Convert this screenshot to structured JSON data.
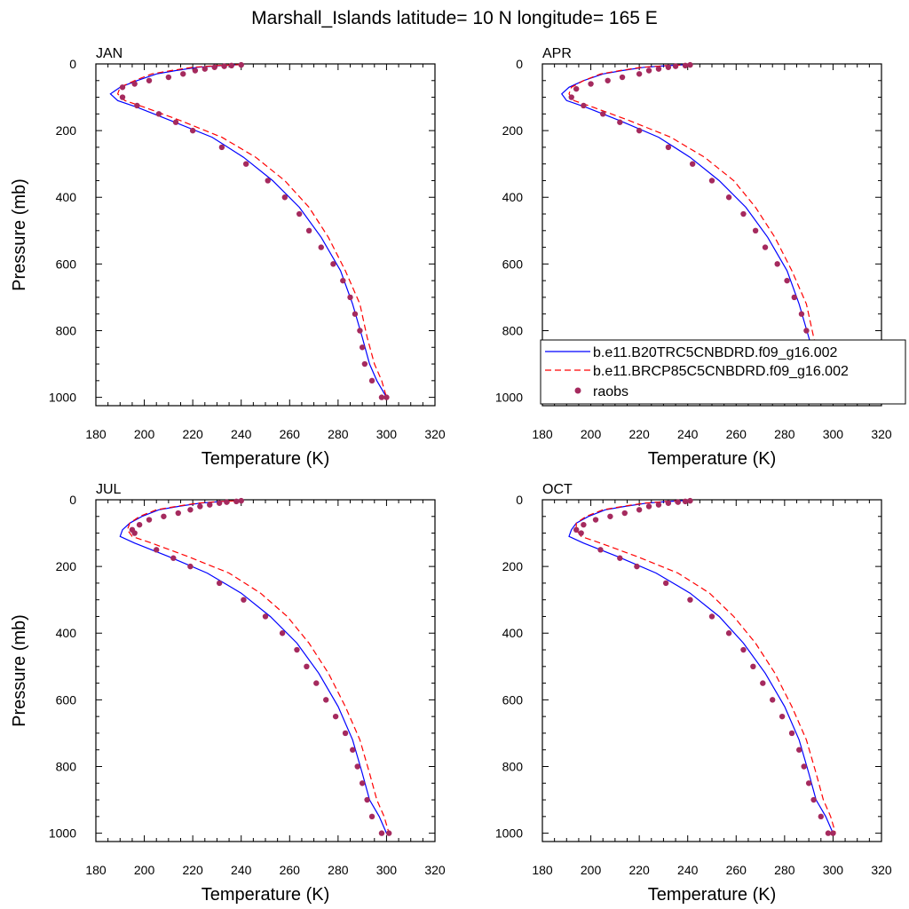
{
  "title": "Marshall_Islands  latitude= 10 N longitude= 165 E",
  "colors": {
    "model1": "#0000ff",
    "model2": "#ff0000",
    "raobs": "#a52a5e",
    "axis": "#000000",
    "background": "#ffffff"
  },
  "legend": {
    "items": [
      {
        "label": "b.e11.B20TRC5CNBDRD.f09_g16.002",
        "style": "solid-line"
      },
      {
        "label": "b.e11.BRCP85C5CNBDRD.f09_g16.002",
        "style": "dashed-line"
      },
      {
        "label": "raobs",
        "style": "marker"
      }
    ]
  },
  "chart_data": [
    {
      "type": "line",
      "panel": "JAN",
      "xlabel": "Temperature (K)",
      "ylabel": "Pressure (mb)",
      "xlim": [
        180,
        320
      ],
      "ylim": [
        1025,
        0
      ],
      "xticks": [
        180,
        200,
        220,
        240,
        260,
        280,
        300,
        320
      ],
      "yticks": [
        0,
        200,
        400,
        600,
        800,
        1000
      ],
      "series": [
        {
          "name": "b.e11.B20TRC5CNBDRD.f09_g16.002",
          "style": "solid",
          "x": [
            240,
            232,
            222,
            213,
            205,
            197,
            190,
            186,
            189,
            197,
            211,
            228,
            241,
            253,
            264,
            273,
            281,
            286,
            290,
            293,
            296,
            300
          ],
          "y": [
            2,
            5,
            10,
            20,
            30,
            50,
            70,
            90,
            110,
            130,
            170,
            220,
            280,
            350,
            430,
            520,
            620,
            720,
            820,
            900,
            950,
            1000
          ]
        },
        {
          "name": "b.e11.BRCP85C5CNBDRD.f09_g16.002",
          "style": "dashed",
          "x": [
            240,
            230,
            220,
            211,
            203,
            196,
            190,
            189,
            192,
            200,
            215,
            232,
            246,
            258,
            268,
            276,
            283,
            289,
            292,
            295,
            298,
            300
          ],
          "y": [
            2,
            5,
            10,
            20,
            30,
            50,
            70,
            90,
            110,
            130,
            170,
            220,
            280,
            350,
            430,
            520,
            620,
            720,
            820,
            900,
            950,
            1000
          ]
        },
        {
          "name": "raobs",
          "style": "marker",
          "x": [
            240,
            236,
            233,
            229,
            225,
            221,
            216,
            210,
            202,
            196,
            191,
            191,
            197,
            206,
            213,
            220,
            232,
            242,
            251,
            258,
            264,
            268,
            273,
            278,
            282,
            285,
            287,
            289,
            290,
            291,
            294,
            298,
            300
          ],
          "y": [
            3,
            5,
            7,
            10,
            15,
            20,
            30,
            40,
            50,
            60,
            70,
            100,
            125,
            150,
            175,
            200,
            250,
            300,
            350,
            400,
            450,
            500,
            550,
            600,
            650,
            700,
            750,
            800,
            850,
            900,
            950,
            1000,
            1000
          ]
        }
      ]
    },
    {
      "type": "line",
      "panel": "APR",
      "xlabel": "Temperature (K)",
      "ylabel": "",
      "xlim": [
        180,
        320
      ],
      "ylim": [
        1025,
        0
      ],
      "xticks": [
        180,
        200,
        220,
        240,
        260,
        280,
        300,
        320
      ],
      "yticks": [
        0,
        200,
        400,
        600,
        800,
        1000
      ],
      "series": [
        {
          "name": "b.e11.B20TRC5CNBDRD.f09_g16.002",
          "style": "solid",
          "x": [
            240,
            232,
            222,
            213,
            205,
            197,
            191,
            188,
            190,
            198,
            212,
            228,
            241,
            253,
            264,
            273,
            281,
            286,
            290,
            293,
            296,
            300
          ],
          "y": [
            2,
            5,
            10,
            20,
            30,
            50,
            70,
            90,
            110,
            130,
            170,
            220,
            280,
            350,
            430,
            520,
            620,
            720,
            820,
            900,
            950,
            1000
          ]
        },
        {
          "name": "b.e11.BRCP85C5CNBDRD.f09_g16.002",
          "style": "dashed",
          "x": [
            241,
            231,
            221,
            212,
            204,
            197,
            192,
            191,
            193,
            201,
            216,
            233,
            247,
            259,
            268,
            276,
            283,
            289,
            292,
            295,
            298,
            300
          ],
          "y": [
            2,
            5,
            10,
            20,
            30,
            50,
            70,
            90,
            110,
            130,
            170,
            220,
            280,
            350,
            430,
            520,
            620,
            720,
            820,
            900,
            950,
            1000
          ]
        },
        {
          "name": "raobs",
          "style": "marker",
          "x": [
            241,
            239,
            235,
            232,
            228,
            224,
            220,
            213,
            207,
            200,
            194,
            192,
            197,
            205,
            212,
            220,
            232,
            242,
            250,
            257,
            263,
            268,
            272,
            277,
            281,
            284,
            287,
            289,
            290,
            292,
            295,
            298,
            300
          ],
          "y": [
            3,
            5,
            7,
            10,
            15,
            20,
            30,
            40,
            50,
            60,
            75,
            100,
            125,
            150,
            175,
            200,
            250,
            300,
            350,
            400,
            450,
            500,
            550,
            600,
            650,
            700,
            750,
            800,
            850,
            900,
            950,
            1000,
            1000
          ]
        }
      ]
    },
    {
      "type": "line",
      "panel": "JUL",
      "xlabel": "Temperature (K)",
      "ylabel": "Pressure (mb)",
      "xlim": [
        180,
        320
      ],
      "ylim": [
        1025,
        0
      ],
      "xticks": [
        180,
        200,
        220,
        240,
        260,
        280,
        300,
        320
      ],
      "yticks": [
        0,
        200,
        400,
        600,
        800,
        1000
      ],
      "series": [
        {
          "name": "b.e11.B20TRC5CNBDRD.f09_g16.002",
          "style": "solid",
          "x": [
            240,
            232,
            223,
            214,
            206,
            199,
            194,
            191,
            190,
            196,
            210,
            226,
            240,
            252,
            263,
            272,
            280,
            286,
            290,
            293,
            297,
            300
          ],
          "y": [
            2,
            5,
            10,
            20,
            30,
            50,
            70,
            90,
            110,
            130,
            170,
            220,
            280,
            350,
            430,
            520,
            620,
            720,
            820,
            900,
            950,
            1000
          ]
        },
        {
          "name": "b.e11.BRCP85C5CNBDRD.f09_g16.002",
          "style": "dashed",
          "x": [
            241,
            231,
            222,
            213,
            205,
            198,
            194,
            193,
            195,
            203,
            218,
            235,
            248,
            259,
            268,
            276,
            283,
            289,
            293,
            296,
            299,
            301
          ],
          "y": [
            2,
            5,
            10,
            20,
            30,
            50,
            70,
            90,
            110,
            130,
            170,
            220,
            280,
            350,
            430,
            520,
            620,
            720,
            820,
            900,
            950,
            1000
          ]
        },
        {
          "name": "raobs",
          "style": "marker",
          "x": [
            240,
            238,
            234,
            231,
            227,
            223,
            219,
            214,
            208,
            202,
            198,
            195,
            196,
            205,
            212,
            219,
            231,
            241,
            250,
            257,
            263,
            267,
            271,
            275,
            279,
            283,
            286,
            288,
            290,
            292,
            294,
            298,
            301
          ],
          "y": [
            3,
            5,
            7,
            10,
            15,
            20,
            30,
            40,
            50,
            60,
            75,
            90,
            100,
            150,
            175,
            200,
            250,
            300,
            350,
            400,
            450,
            500,
            550,
            600,
            650,
            700,
            750,
            800,
            850,
            900,
            950,
            1000,
            1000
          ]
        }
      ]
    },
    {
      "type": "line",
      "panel": "OCT",
      "xlabel": "Temperature (K)",
      "ylabel": "",
      "xlim": [
        180,
        320
      ],
      "ylim": [
        1025,
        0
      ],
      "xticks": [
        180,
        200,
        220,
        240,
        260,
        280,
        300,
        320
      ],
      "yticks": [
        0,
        200,
        400,
        600,
        800,
        1000
      ],
      "series": [
        {
          "name": "b.e11.B20TRC5CNBDRD.f09_g16.002",
          "style": "solid",
          "x": [
            240,
            232,
            223,
            214,
            206,
            199,
            194,
            192,
            191,
            197,
            211,
            227,
            241,
            253,
            263,
            272,
            280,
            286,
            290,
            293,
            297,
            300
          ],
          "y": [
            2,
            5,
            10,
            20,
            30,
            50,
            70,
            90,
            110,
            130,
            170,
            220,
            280,
            350,
            430,
            520,
            620,
            720,
            820,
            900,
            950,
            1000
          ]
        },
        {
          "name": "b.e11.BRCP85C5CNBDRD.f09_g16.002",
          "style": "dashed",
          "x": [
            241,
            231,
            222,
            213,
            205,
            198,
            194,
            194,
            196,
            204,
            219,
            236,
            249,
            259,
            268,
            276,
            283,
            289,
            293,
            296,
            299,
            301
          ],
          "y": [
            2,
            5,
            10,
            20,
            30,
            50,
            70,
            90,
            110,
            130,
            170,
            220,
            280,
            350,
            430,
            520,
            620,
            720,
            820,
            900,
            950,
            1000
          ]
        },
        {
          "name": "raobs",
          "style": "marker",
          "x": [
            241,
            239,
            236,
            232,
            228,
            224,
            220,
            214,
            208,
            202,
            197,
            194,
            196,
            204,
            212,
            219,
            231,
            241,
            250,
            257,
            263,
            267,
            271,
            275,
            279,
            283,
            286,
            288,
            290,
            292,
            295,
            298,
            300
          ],
          "y": [
            3,
            5,
            7,
            10,
            15,
            20,
            30,
            40,
            50,
            60,
            75,
            90,
            100,
            150,
            175,
            200,
            250,
            300,
            350,
            400,
            450,
            500,
            550,
            600,
            650,
            700,
            750,
            800,
            850,
            900,
            950,
            1000,
            1000
          ]
        }
      ]
    }
  ]
}
